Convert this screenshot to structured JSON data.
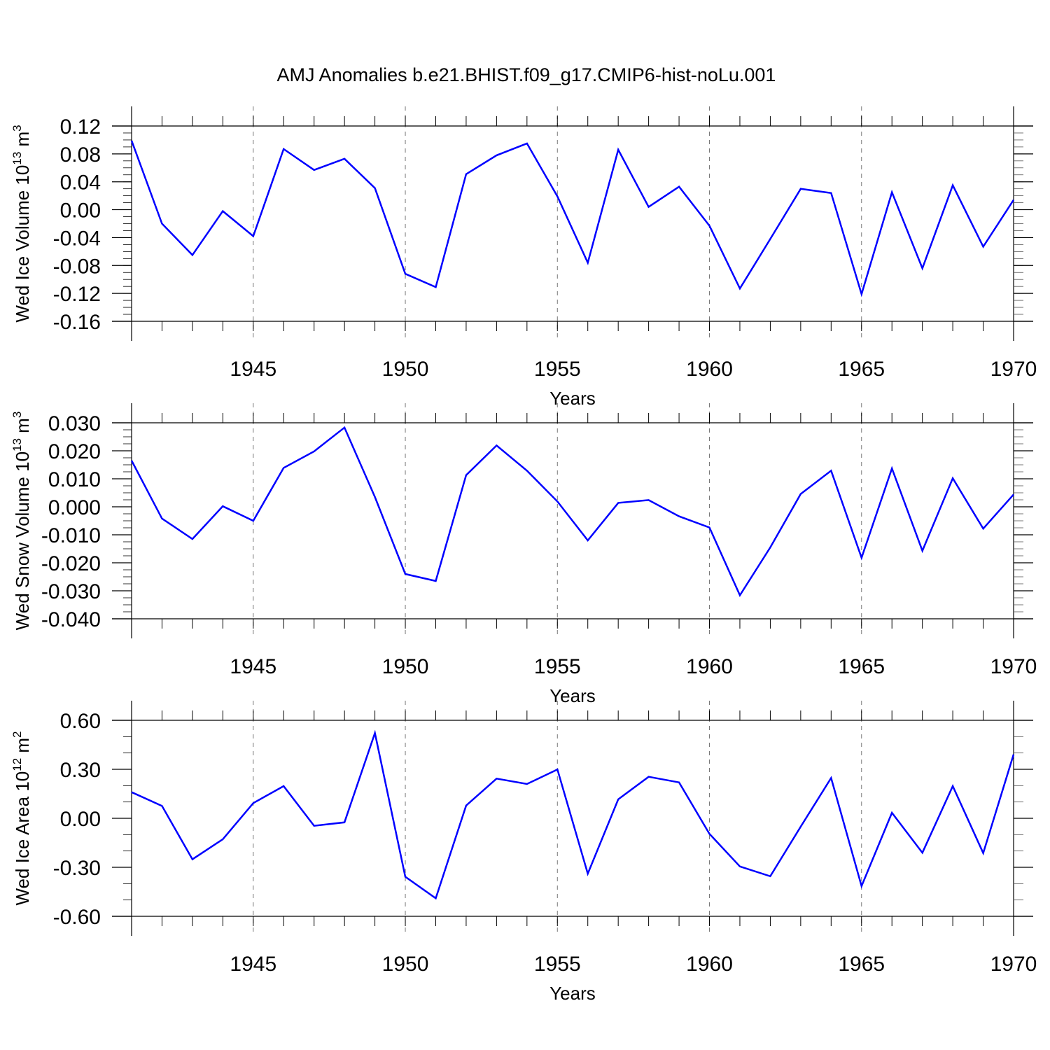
{
  "title": "AMJ Anomalies b.e21.BHIST.f09_g17.CMIP6-hist-noLu.001",
  "line_color": "#0000ff",
  "chart_data": [
    {
      "type": "line",
      "ylabel_main": "Wed Ice Volume 10",
      "ylabel_exp": "13",
      "ylabel_unit": "m",
      "ylabel_unit_exp": "3",
      "xlabel": "Years",
      "xlim": [
        1941,
        1970
      ],
      "ylim": [
        -0.16,
        0.12
      ],
      "yticks": [
        "0.12",
        "0.08",
        "0.04",
        "0.00",
        "-0.04",
        "-0.08",
        "-0.12",
        "-0.16"
      ],
      "xticks": [
        "1945",
        "1950",
        "1955",
        "1960",
        "1965",
        "1970"
      ],
      "x": [
        1941,
        1942,
        1943,
        1944,
        1945,
        1946,
        1947,
        1948,
        1949,
        1950,
        1951,
        1952,
        1953,
        1954,
        1955,
        1956,
        1957,
        1958,
        1959,
        1960,
        1961,
        1962,
        1963,
        1964,
        1965,
        1966,
        1967,
        1968,
        1969,
        1970
      ],
      "values": [
        0.099,
        -0.02,
        -0.065,
        -0.002,
        -0.038,
        0.087,
        0.057,
        0.073,
        0.031,
        -0.092,
        -0.111,
        0.051,
        0.078,
        0.095,
        0.019,
        -0.076,
        0.086,
        0.004,
        0.033,
        -0.023,
        -0.113,
        -0.042,
        0.03,
        0.024,
        -0.121,
        0.025,
        -0.084,
        0.035,
        -0.053,
        0.014
      ]
    },
    {
      "type": "line",
      "ylabel_main": "Wed Snow Volume 10",
      "ylabel_exp": "13",
      "ylabel_unit": "m",
      "ylabel_unit_exp": "3",
      "xlabel": "Years",
      "xlim": [
        1941,
        1970
      ],
      "ylim": [
        -0.04,
        0.03
      ],
      "yticks": [
        "0.030",
        "0.020",
        "0.010",
        "0.000",
        "-0.010",
        "-0.020",
        "-0.030",
        "-0.040"
      ],
      "xticks": [
        "1945",
        "1950",
        "1955",
        "1960",
        "1965",
        "1970"
      ],
      "x": [
        1941,
        1942,
        1943,
        1944,
        1945,
        1946,
        1947,
        1948,
        1949,
        1950,
        1951,
        1952,
        1953,
        1954,
        1955,
        1956,
        1957,
        1958,
        1959,
        1960,
        1961,
        1962,
        1963,
        1964,
        1965,
        1966,
        1967,
        1968,
        1969,
        1970
      ],
      "values": [
        0.0165,
        -0.0042,
        -0.0115,
        0.0002,
        -0.005,
        0.0139,
        0.0198,
        0.0283,
        0.0035,
        -0.024,
        -0.0265,
        0.0113,
        0.0219,
        0.0129,
        0.0019,
        -0.012,
        0.0014,
        0.0024,
        -0.0034,
        -0.0074,
        -0.0316,
        -0.0145,
        0.0046,
        0.0129,
        -0.0182,
        0.0137,
        -0.0157,
        0.0102,
        -0.0078,
        0.0044
      ]
    },
    {
      "type": "line",
      "ylabel_main": "Wed Ice Area 10",
      "ylabel_exp": "12",
      "ylabel_unit": "m",
      "ylabel_unit_exp": "2",
      "xlabel": "Years",
      "xlim": [
        1941,
        1970
      ],
      "ylim": [
        -0.6,
        0.6
      ],
      "yticks": [
        "0.60",
        "0.30",
        "0.00",
        "-0.30",
        "-0.60"
      ],
      "xticks": [
        "1945",
        "1950",
        "1955",
        "1960",
        "1965",
        "1970"
      ],
      "x": [
        1941,
        1942,
        1943,
        1944,
        1945,
        1946,
        1947,
        1948,
        1949,
        1950,
        1951,
        1952,
        1953,
        1954,
        1955,
        1956,
        1957,
        1958,
        1959,
        1960,
        1961,
        1962,
        1963,
        1964,
        1965,
        1966,
        1967,
        1968,
        1969,
        1970
      ],
      "values": [
        0.16,
        0.076,
        -0.251,
        -0.128,
        0.093,
        0.197,
        -0.046,
        -0.025,
        0.522,
        -0.358,
        -0.49,
        0.078,
        0.243,
        0.21,
        0.299,
        -0.339,
        0.116,
        0.254,
        0.22,
        -0.095,
        -0.295,
        -0.355,
        -0.051,
        0.247,
        -0.415,
        0.034,
        -0.211,
        0.197,
        -0.213,
        0.391
      ]
    }
  ]
}
